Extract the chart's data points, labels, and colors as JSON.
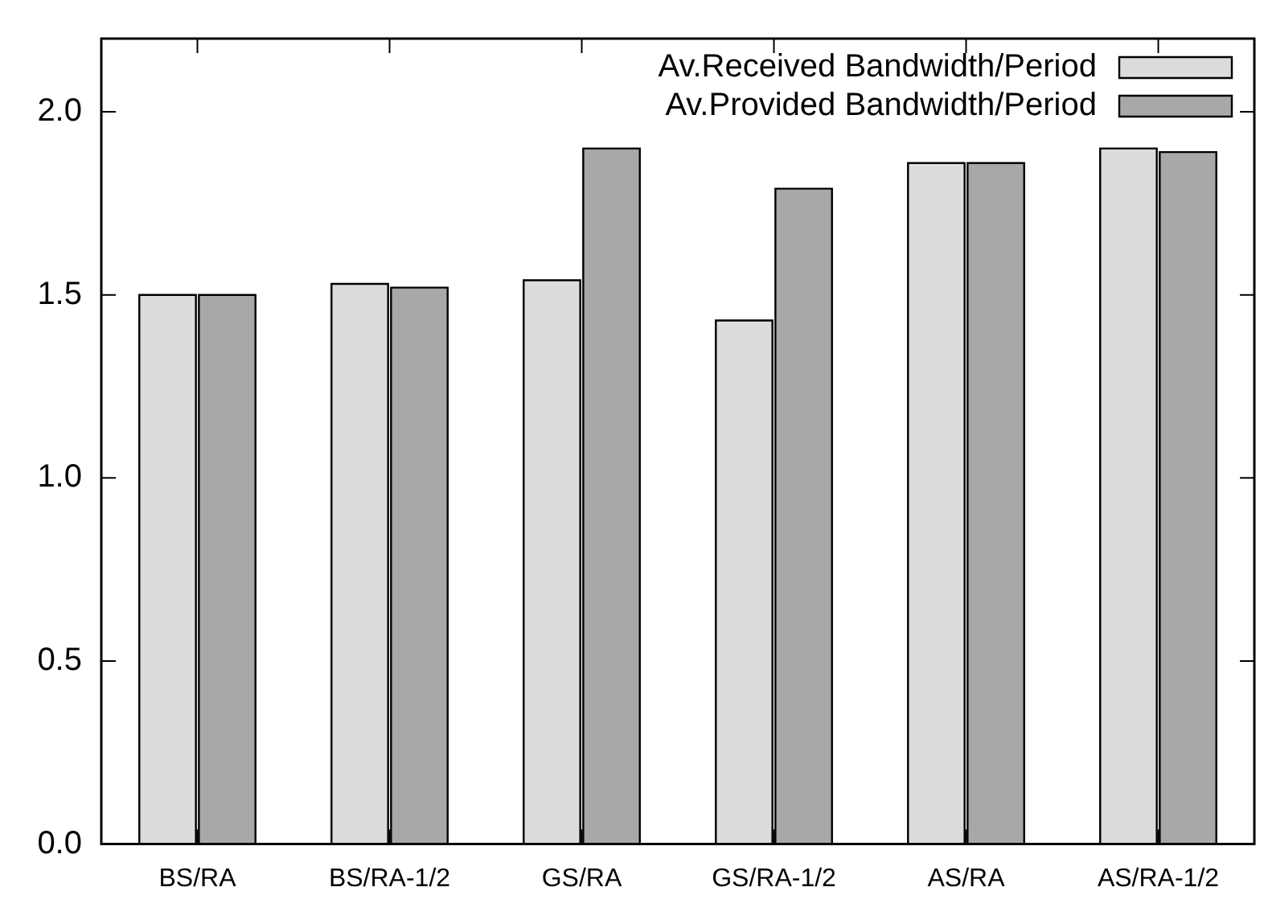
{
  "chart_data": {
    "type": "bar",
    "categories": [
      "BS/RA",
      "BS/RA-1/2",
      "GS/RA",
      "GS/RA-1/2",
      "AS/RA",
      "AS/RA-1/2"
    ],
    "series": [
      {
        "name": "Av.Received Bandwidth/Period",
        "color": "#dcdcdc",
        "values": [
          1.5,
          1.53,
          1.54,
          1.43,
          1.86,
          1.9
        ]
      },
      {
        "name": "Av.Provided Bandwidth/Period",
        "color": "#a8a8a8",
        "values": [
          1.5,
          1.52,
          1.9,
          1.79,
          1.86,
          1.89
        ]
      }
    ],
    "ylim": [
      0,
      2.2
    ],
    "yticks": [
      {
        "value": 0,
        "label": "0.0"
      },
      {
        "value": 0.5,
        "label": "0.5"
      },
      {
        "value": 1,
        "label": "1.0"
      },
      {
        "value": 1.5,
        "label": "1.5"
      },
      {
        "value": 2,
        "label": "2.0"
      }
    ],
    "grid": false,
    "legend": "top right"
  }
}
